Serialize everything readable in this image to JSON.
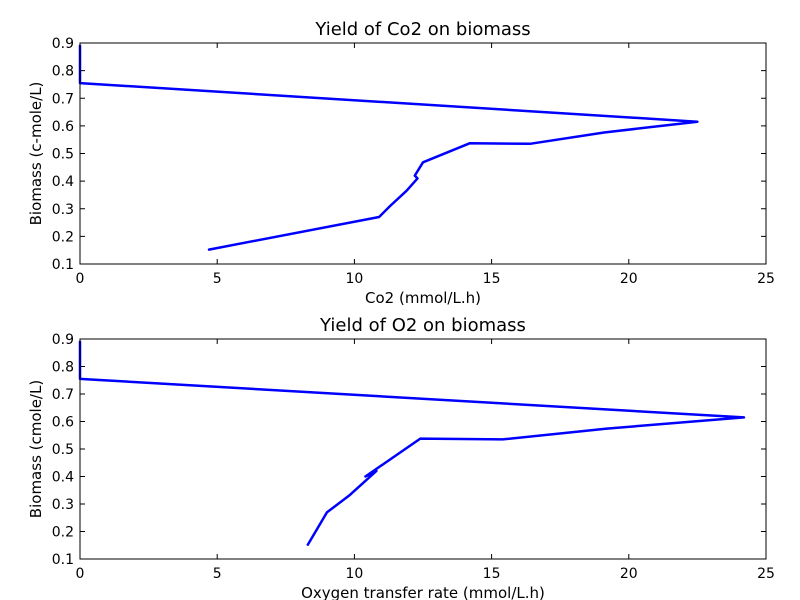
{
  "chart_data": [
    {
      "type": "line",
      "title": "Yield of Co2 on biomass",
      "xlabel": "Co2 (mmol/L.h)",
      "ylabel": "Biomass (c-mole/L)",
      "xlim": [
        0,
        25
      ],
      "ylim": [
        0.1,
        0.9
      ],
      "xticks": [
        0,
        5,
        10,
        15,
        20,
        25
      ],
      "yticks": [
        0.1,
        0.2,
        0.3,
        0.4,
        0.5,
        0.6,
        0.7,
        0.8,
        0.9
      ],
      "grid": false,
      "color": "#0000ff",
      "series": [
        {
          "x": [
            4.7,
            10.9,
            11.3,
            11.9,
            12.3,
            12.2,
            12.5,
            14.2,
            16.4,
            19.1,
            22.5,
            0,
            0
          ],
          "y": [
            0.152,
            0.27,
            0.31,
            0.365,
            0.41,
            0.42,
            0.468,
            0.537,
            0.535,
            0.576,
            0.615,
            0.755,
            0.89
          ]
        }
      ]
    },
    {
      "type": "line",
      "title": "Yield of O2 on biomass",
      "xlabel": "Oxygen transfer rate (mmol/L.h)",
      "ylabel": "Biomass (cmole/L)",
      "xlim": [
        0,
        25
      ],
      "ylim": [
        0.1,
        0.9
      ],
      "xticks": [
        0,
        5,
        10,
        15,
        20,
        25
      ],
      "yticks": [
        0.1,
        0.2,
        0.3,
        0.4,
        0.5,
        0.6,
        0.7,
        0.8,
        0.9
      ],
      "grid": false,
      "color": "#0000ff",
      "series": [
        {
          "x": [
            8.3,
            9.0,
            9.8,
            10.3,
            10.8,
            10.4,
            12.4,
            15.4,
            19.2,
            24.2,
            0,
            0
          ],
          "y": [
            0.152,
            0.27,
            0.33,
            0.375,
            0.42,
            0.4,
            0.538,
            0.535,
            0.574,
            0.615,
            0.755,
            0.89
          ]
        }
      ]
    }
  ]
}
